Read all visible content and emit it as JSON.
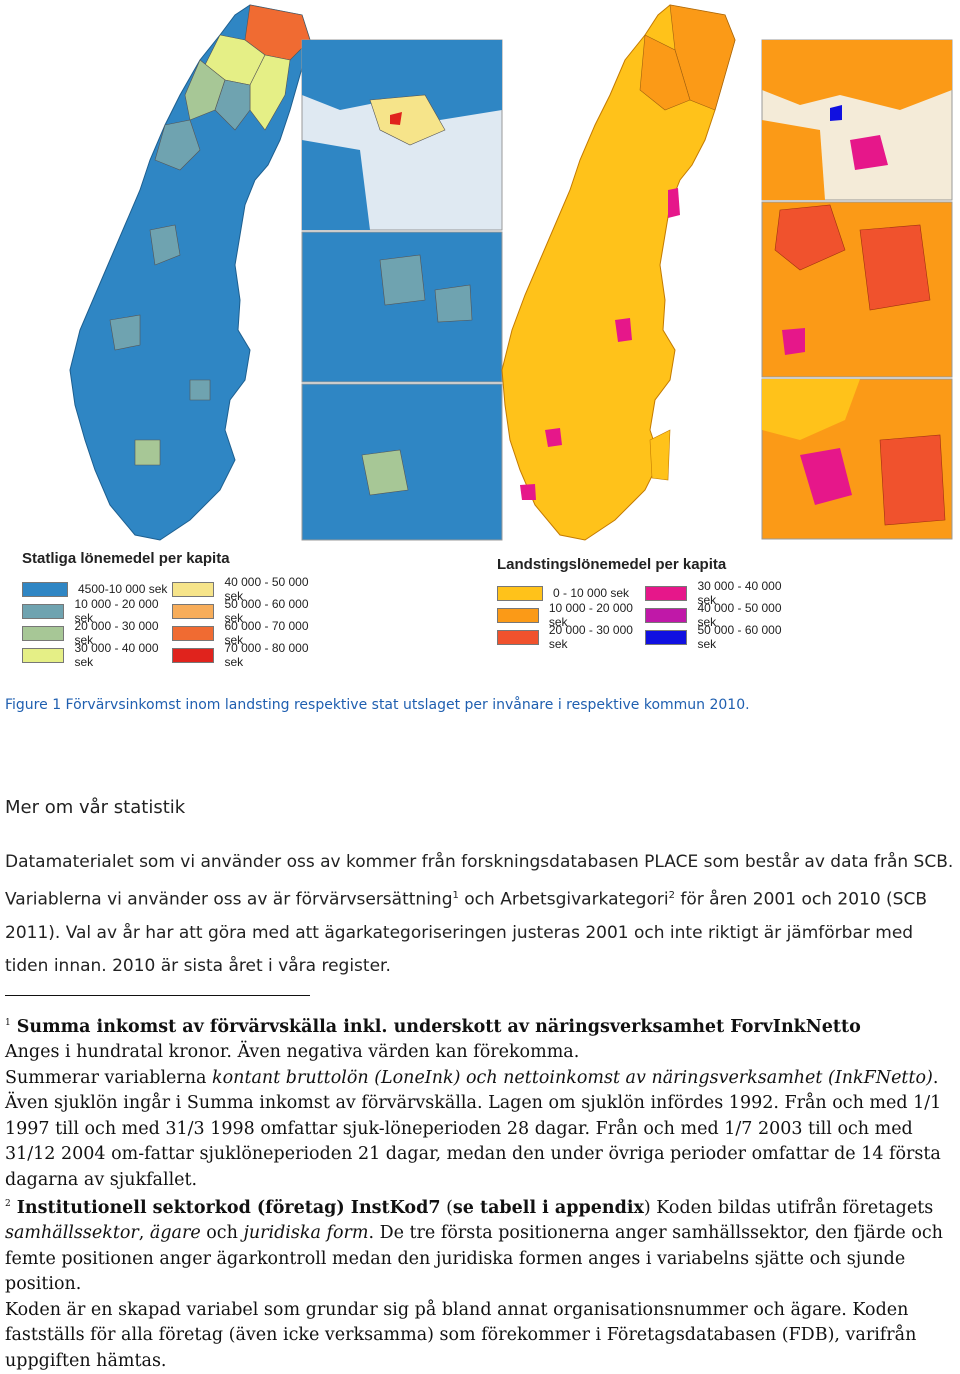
{
  "legend_left": {
    "title": "Statliga lönemedel per kapita",
    "items": [
      {
        "label": "4500-10 000 sek",
        "color": "#2f86c4"
      },
      {
        "label": "10 000 - 20 000 sek",
        "color": "#6fa3b0"
      },
      {
        "label": "20 000 - 30 000 sek",
        "color": "#a7c796"
      },
      {
        "label": "30 000 - 40 000 sek",
        "color": "#e5ef86"
      },
      {
        "label": "40 000 - 50 000 sek",
        "color": "#f6e48a"
      },
      {
        "label": "50 000 - 60 000 sek",
        "color": "#f7ad5a"
      },
      {
        "label": "60 000 - 70 000 sek",
        "color": "#f06b32"
      },
      {
        "label": "70 000 - 80 000 sek",
        "color": "#e0231d"
      }
    ]
  },
  "legend_right": {
    "title": "Landstingslönemedel per kapita",
    "items": [
      {
        "label": "0 - 10 000 sek",
        "color": "#ffc21a"
      },
      {
        "label": "10 000 - 20 000 sek",
        "color": "#fb9a17"
      },
      {
        "label": "20 000 - 30 000 sek",
        "color": "#f0522d"
      },
      {
        "label": "30 000 - 40 000 sek",
        "color": "#e6178a"
      },
      {
        "label": "40 000 - 50 000 sek",
        "color": "#c018a8"
      },
      {
        "label": "50 000 - 60 000 sek",
        "color": "#1010e0"
      }
    ]
  },
  "caption": "Figure 1 Förvärvsinkomst inom landsting respektive stat utslaget per invånare i respektive kommun 2010.",
  "heading": "Mer om vår statistik",
  "paragraph": {
    "p1": "Datamaterialet som vi använder oss av kommer från forskningsdatabasen PLACE som består av data från SCB. Variablerna vi använder oss av är förvärvsersättning",
    "sup1": "1",
    "p2": " och Arbetsgivarkategori",
    "sup2": "2",
    "p3": " för åren 2001 och 2010 (SCB 2011). Val av år har att göra med att ägarkategoriseringen justeras 2001 och inte riktigt är jämförbar med tiden innan. 2010 är sista året i våra register."
  },
  "footnote1": {
    "mark": "1",
    "bold": "Summa inkomst av förvärvskälla inkl. underskott av näringsverksamhet ForvInkNetto",
    "t1": "Anges i hundratal kronor. Även negativa värden kan förekomma.",
    "t2": "Summerar variablerna ",
    "i1": "kontant bruttolön (LoneInk) och nettoinkomst av näringsverksamhet (InkFNetto)",
    "t3": ". Även sjuklön ingår i Summa inkomst av förvärvskälla. Lagen om sjuklön infördes 1992. Från och med 1/1 1997 till och med 31/3 1998 omfattar sjuk-löneperioden 28 dagar. Från och med 1/7 2003 till och med 31/12 2004 om-fattar sjuklöneperioden 21 dagar, medan den under övriga perioder omfattar de 14 första dagarna av sjukfallet."
  },
  "footnote2": {
    "mark": "2",
    "bold1": "Institutionell sektorkod (företag) InstKod7",
    "t0": " (",
    "bold2": "se tabell i appendix",
    "t1": ") Koden bildas utifrån företagets ",
    "i1": "samhällssektor",
    "t2": ", ",
    "i2": "ägare",
    "t3": " och ",
    "i3": "juridiska form",
    "t4": ". De tre första positionerna anger samhällssektor, den fjärde och femte positionen anger ägarkontroll medan den juridiska formen anges i variabelns sjätte och sjunde position.",
    "t5": "Koden är en skapad variabel som grundar sig på bland annat organisationsnummer och ägare. Koden fastställs för alla företag (även icke verksamma) som förekommer i Företagsdatabasen (FDB), varifrån uppgiften hämtas."
  }
}
